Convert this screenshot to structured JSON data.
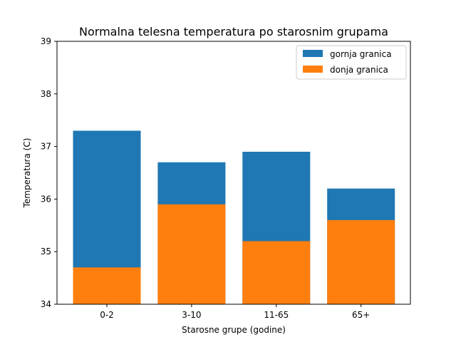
{
  "chart_data": {
    "type": "bar",
    "title": "Normalna telesna temperatura po starosnim grupama",
    "xlabel": "Starosne grupe (godine)",
    "ylabel": "Temperatura (C)",
    "categories": [
      "0-2",
      "3-10",
      "11-65",
      "65+"
    ],
    "ylim": [
      34,
      39
    ],
    "yticks": [
      "34",
      "35",
      "36",
      "37",
      "38",
      "39"
    ],
    "grid": false,
    "legend_position": "top-right",
    "series": [
      {
        "name": "gornja granica",
        "color": "#1f77b4",
        "values": [
          37.3,
          36.7,
          36.9,
          36.2
        ]
      },
      {
        "name": "donja granica",
        "color": "#ff7f0e",
        "values": [
          34.7,
          35.9,
          35.2,
          35.6
        ]
      }
    ]
  }
}
